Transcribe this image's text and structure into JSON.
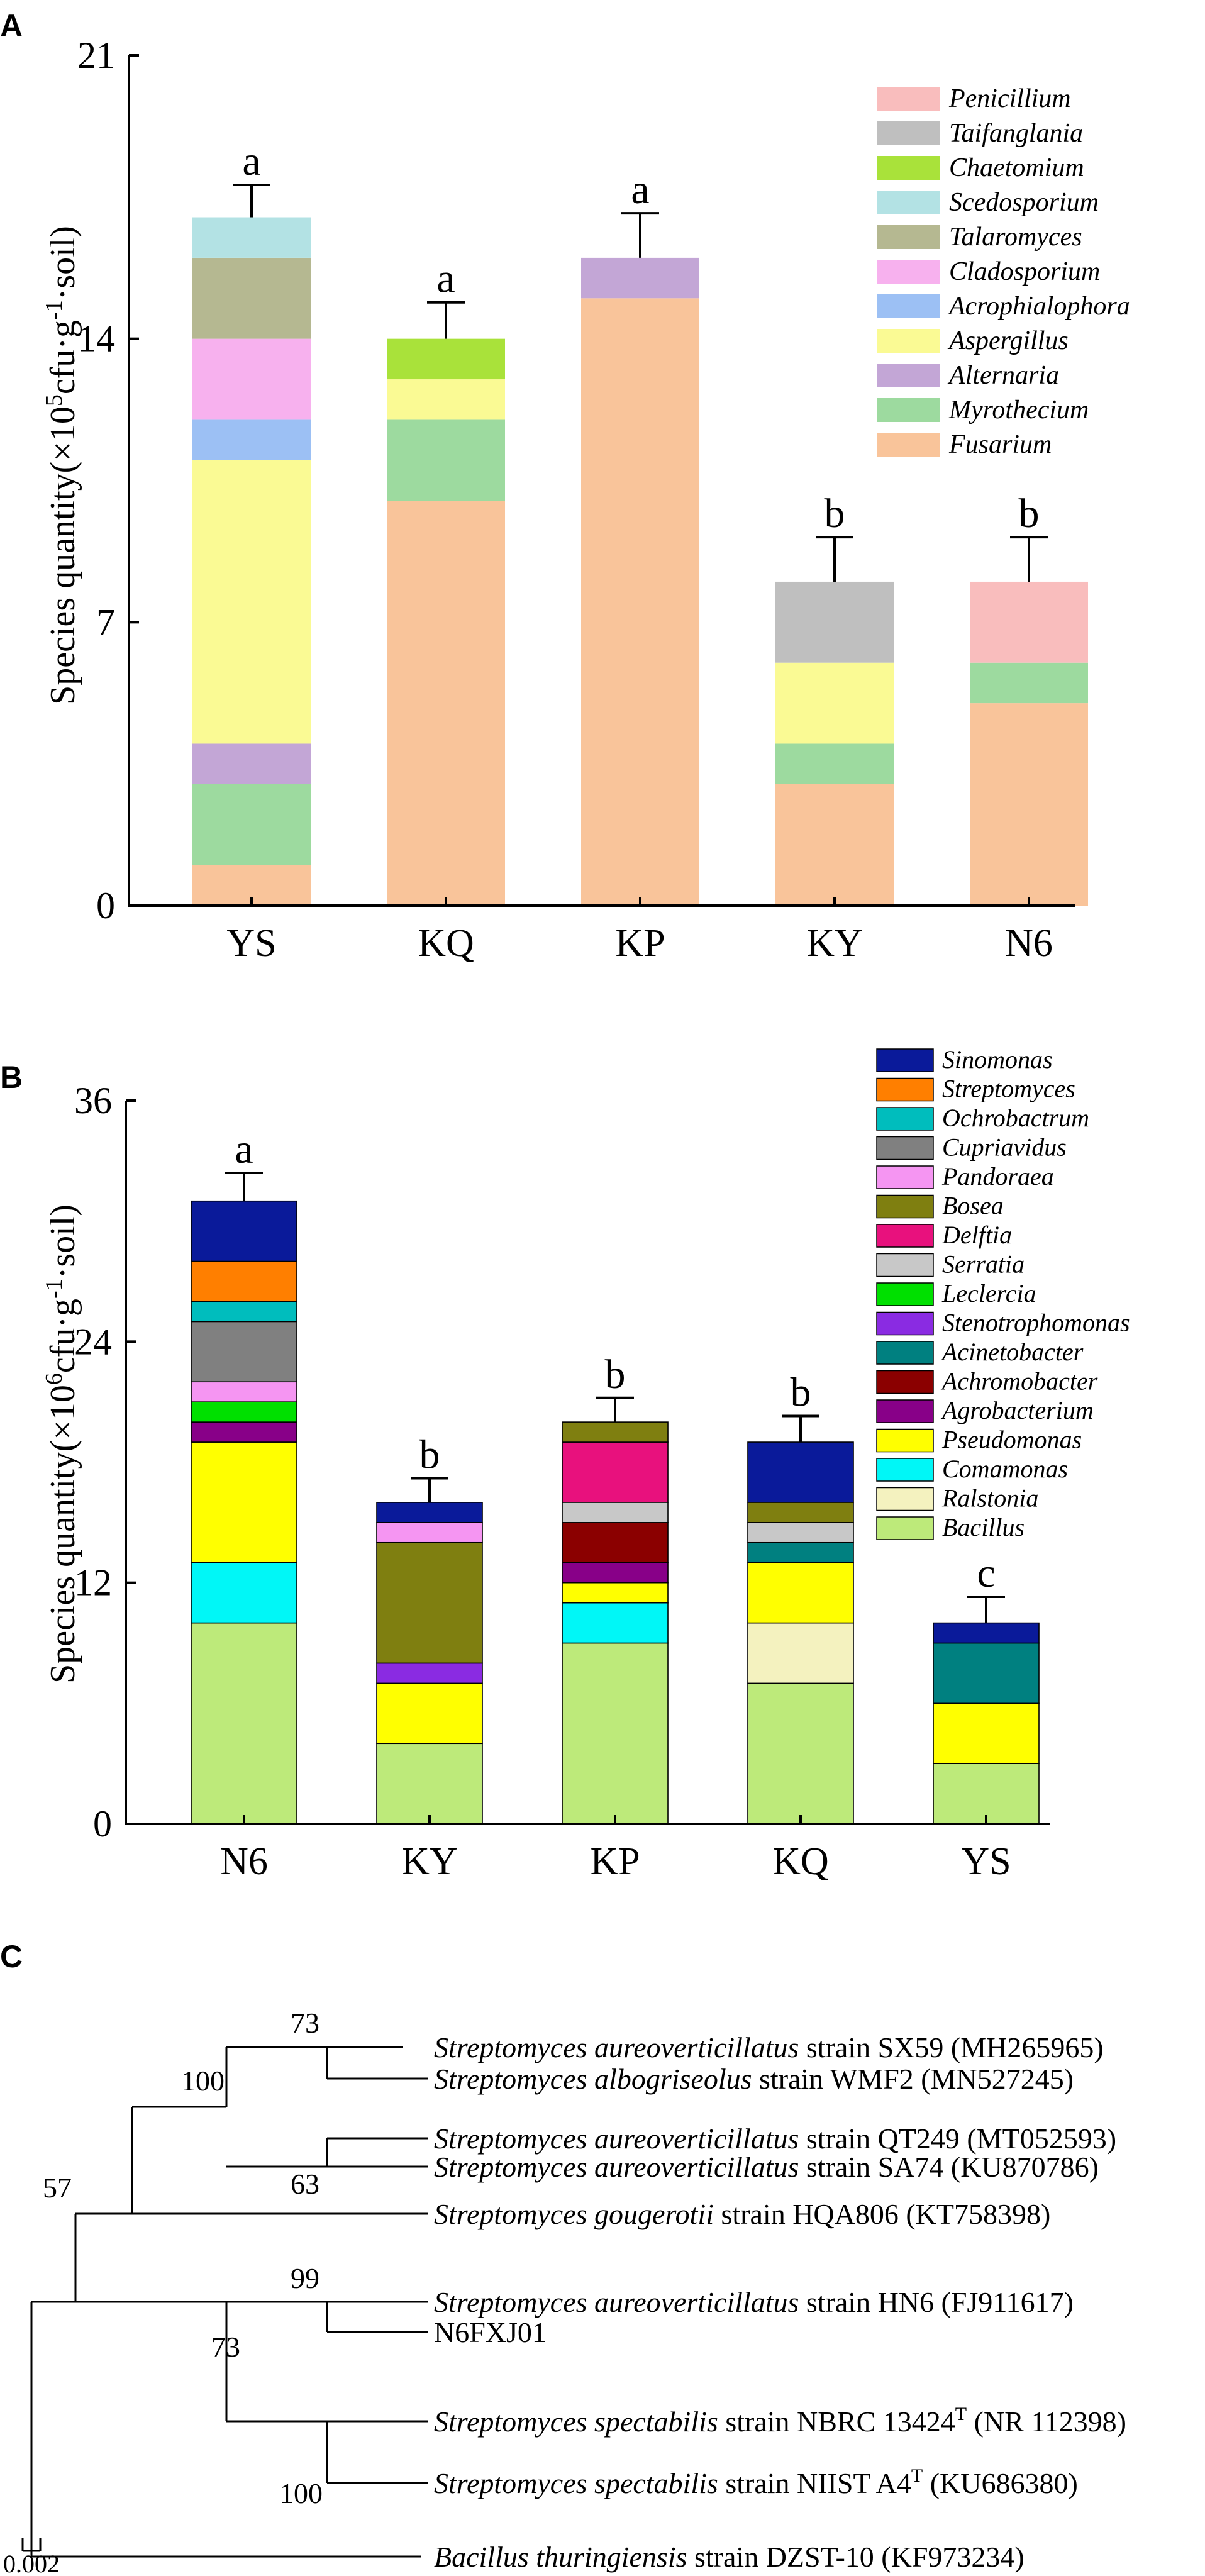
{
  "chart_data": [
    {
      "panel": "A",
      "type": "bar",
      "stacked": true,
      "title": "",
      "xlabel": "",
      "ylabel_prefix": "Species quantity(×10",
      "ylabel_exp": "5",
      "ylabel_unit": "cfu·g",
      "ylabel_exp2": "-1",
      "ylabel_suffix": "·soil)",
      "ylim": [
        0,
        21
      ],
      "yticks": [
        "0",
        "7",
        "14",
        "21"
      ],
      "ytick_values": [
        0,
        7,
        14,
        21
      ],
      "categories": [
        "YS",
        "KQ",
        "KP",
        "KY",
        "N6"
      ],
      "letters": [
        "a",
        "a",
        "a",
        "b",
        "b"
      ],
      "error": [
        0.8,
        0.9,
        1.1,
        1.1,
        1.1
      ],
      "legend_position": "top-right",
      "series": [
        {
          "name": "Fusarium",
          "color": "#F9C49A",
          "values": [
            1,
            10,
            15,
            3,
            5
          ]
        },
        {
          "name": "Myrothecium",
          "color": "#9DDA9F",
          "values": [
            2,
            2,
            0,
            1,
            1
          ]
        },
        {
          "name": "Alternaria",
          "color": "#C3A6D6",
          "values": [
            1,
            0,
            1,
            0,
            0
          ]
        },
        {
          "name": "Aspergillus",
          "color": "#FAFA94",
          "values": [
            7,
            1,
            0,
            2,
            0
          ]
        },
        {
          "name": "Acrophialophora",
          "color": "#9CC0F4",
          "values": [
            1,
            0,
            0,
            0,
            0
          ]
        },
        {
          "name": "Cladosporium",
          "color": "#F7B1EE",
          "values": [
            2,
            0,
            0,
            0,
            0
          ]
        },
        {
          "name": "Talaromyces",
          "color": "#B5B891",
          "values": [
            2,
            0,
            0,
            0,
            0
          ]
        },
        {
          "name": "Scedosporium",
          "color": "#B3E2E4",
          "values": [
            1,
            0,
            0,
            0,
            0
          ]
        },
        {
          "name": "Chaetomium",
          "color": "#A9E23A",
          "values": [
            0,
            1,
            0,
            0,
            0
          ]
        },
        {
          "name": "Taifanglania",
          "color": "#BFBFBF",
          "values": [
            0,
            0,
            0,
            2,
            0
          ]
        },
        {
          "name": "Penicillium",
          "color": "#F9BDBD",
          "values": [
            0,
            0,
            0,
            0,
            2
          ]
        }
      ]
    },
    {
      "panel": "B",
      "type": "bar",
      "stacked": true,
      "title": "",
      "xlabel": "",
      "ylabel_prefix": "Species quantity(×10",
      "ylabel_exp": "6",
      "ylabel_unit": "cfu·g",
      "ylabel_exp2": "-1",
      "ylabel_suffix": "·soil)",
      "ylim": [
        0,
        36
      ],
      "yticks": [
        "0",
        "12",
        "24",
        "36"
      ],
      "ytick_values": [
        0,
        12,
        24,
        36
      ],
      "categories": [
        "N6",
        "KY",
        "KP",
        "KQ",
        "YS"
      ],
      "letters": [
        "a",
        "b",
        "b",
        "b",
        "c"
      ],
      "error": [
        1.4,
        1.2,
        1.2,
        1.3,
        1.3
      ],
      "legend_position": "top-right",
      "series": [
        {
          "name": "Bacillus",
          "color": "#BDEA7A",
          "values": [
            10,
            4,
            9,
            7,
            3
          ]
        },
        {
          "name": "Ralstonia",
          "color": "#F4F2BF",
          "values": [
            0,
            0,
            0,
            3,
            0
          ]
        },
        {
          "name": "Comamonas",
          "color": "#00F7F7",
          "values": [
            3,
            0,
            2,
            0,
            0
          ]
        },
        {
          "name": "Pseudomonas",
          "color": "#FFFF00",
          "values": [
            6,
            3,
            1,
            3,
            3
          ]
        },
        {
          "name": "Agrobacterium",
          "color": "#880088",
          "values": [
            1,
            0,
            1,
            0,
            0
          ]
        },
        {
          "name": "Achromobacter",
          "color": "#8B0000",
          "values": [
            0,
            0,
            2,
            0,
            0
          ]
        },
        {
          "name": "Acinetobacter",
          "color": "#008080",
          "values": [
            0,
            0,
            0,
            1,
            3
          ]
        },
        {
          "name": "Stenotrophomonas",
          "color": "#8A2BE2",
          "values": [
            0,
            1,
            0,
            0,
            0
          ]
        },
        {
          "name": "Leclercia",
          "color": "#00E000",
          "values": [
            1,
            0,
            0,
            0,
            0
          ]
        },
        {
          "name": "Serratia",
          "color": "#C8C8C8",
          "values": [
            0,
            0,
            1,
            1,
            0
          ]
        },
        {
          "name": "Delftia",
          "color": "#E8117D",
          "values": [
            0,
            0,
            3,
            0,
            0
          ]
        },
        {
          "name": "Bosea",
          "color": "#7F7F10",
          "values": [
            0,
            6,
            1,
            1,
            0
          ]
        },
        {
          "name": "Pandoraea",
          "color": "#F595F2",
          "values": [
            1,
            1,
            0,
            0,
            0
          ]
        },
        {
          "name": "Cupriavidus",
          "color": "#808080",
          "values": [
            3,
            0,
            0,
            0,
            0
          ]
        },
        {
          "name": "Ochrobactrum",
          "color": "#00BDBD",
          "values": [
            1,
            0,
            0,
            0,
            0
          ]
        },
        {
          "name": "Streptomyces",
          "color": "#FF7F00",
          "values": [
            2,
            0,
            0,
            0,
            0
          ]
        },
        {
          "name": "Sinomonas",
          "color": "#0A1A9A",
          "values": [
            3,
            1,
            0,
            3,
            1
          ]
        }
      ]
    }
  ],
  "panel_labels": {
    "a": "A",
    "b": "B",
    "c": "C"
  },
  "tree": {
    "leaves": [
      {
        "italic": "Streptomyces aureoverticillatus",
        "rest": " strain SX59 (MH265965)"
      },
      {
        "italic": "Streptomyces albogriseolus",
        "rest": " strain WMF2 (MN527245)"
      },
      {
        "italic": "Streptomyces aureoverticillatus",
        "rest": " strain QT249 (MT052593)"
      },
      {
        "italic": "Streptomyces aureoverticillatus",
        "rest": " strain SA74 (KU870786)"
      },
      {
        "italic": "Streptomyces gougerotii",
        "rest": " strain HQA806 (KT758398)"
      },
      {
        "italic": "Streptomyces aureoverticillatus",
        "rest": " strain HN6 (FJ911617)"
      },
      {
        "italic": "",
        "rest": "N6FXJ01"
      },
      {
        "italic": "Streptomyces spectabilis",
        "rest": " strain NBRC 13424",
        "sup": "T",
        "rest2": " (NR 112398)"
      },
      {
        "italic": "Streptomyces spectabilis",
        "rest": " strain NIIST A4",
        "sup": "T",
        "rest2": " (KU686380)"
      },
      {
        "italic": "Bacillus thuringiensis",
        "rest": " strain DZST-10 (KF973234)"
      }
    ],
    "bootstrap": [
      "73",
      "100",
      "63",
      "57",
      "99",
      "73",
      "100"
    ],
    "scale": "0.002"
  }
}
